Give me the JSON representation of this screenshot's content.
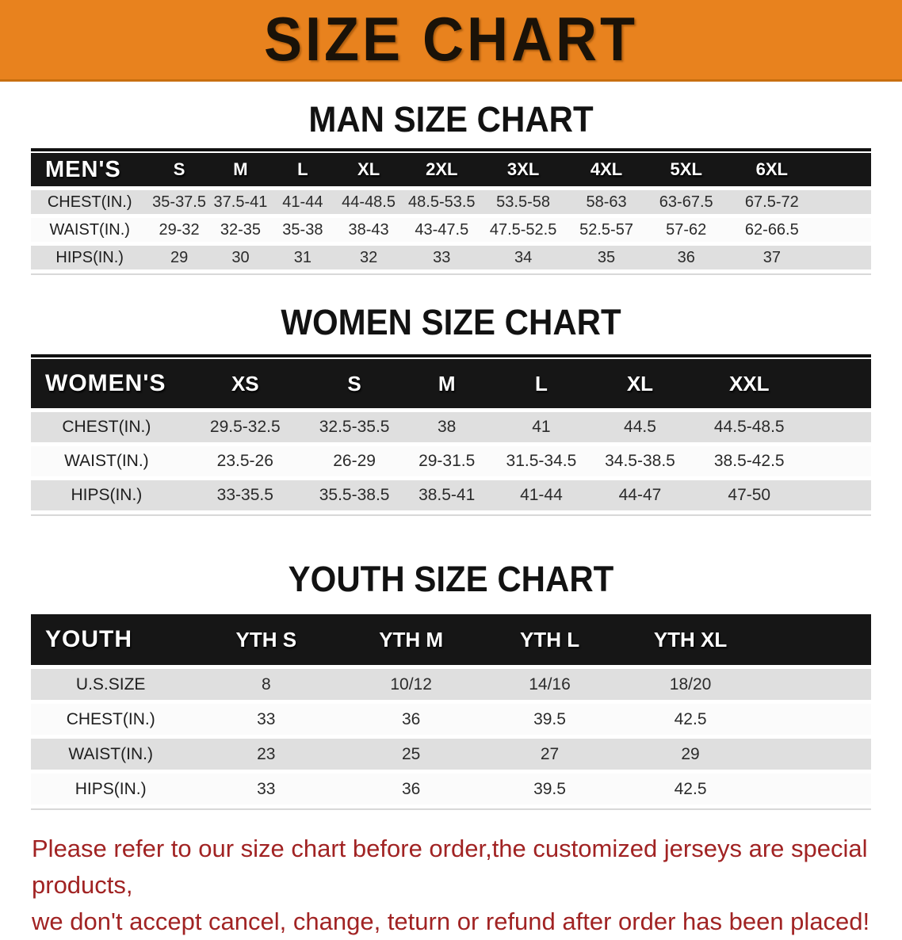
{
  "banner": {
    "title": "SIZE CHART",
    "bg_color": "#E8821E"
  },
  "sections": [
    {
      "title": "MAN SIZE CHART",
      "header_label": "MEN'S",
      "columns": [
        "S",
        "M",
        "L",
        "XL",
        "2XL",
        "3XL",
        "4XL",
        "5XL",
        "6XL"
      ],
      "rows": [
        {
          "label": "CHEST(IN.)",
          "values": [
            "35-37.5",
            "37.5-41",
            "41-44",
            "44-48.5",
            "48.5-53.5",
            "53.5-58",
            "58-63",
            "63-67.5",
            "67.5-72"
          ]
        },
        {
          "label": "WAIST(IN.)",
          "values": [
            "29-32",
            "32-35",
            "35-38",
            "38-43",
            "43-47.5",
            "47.5-52.5",
            "52.5-57",
            "57-62",
            "62-66.5"
          ]
        },
        {
          "label": "HIPS(IN.)",
          "values": [
            "29",
            "30",
            "31",
            "32",
            "33",
            "34",
            "35",
            "36",
            "37"
          ]
        }
      ]
    },
    {
      "title": "WOMEN SIZE CHART",
      "header_label": "WOMEN'S",
      "columns": [
        "XS",
        "S",
        "M",
        "L",
        "XL",
        "XXL"
      ],
      "rows": [
        {
          "label": "CHEST(IN.)",
          "values": [
            "29.5-32.5",
            "32.5-35.5",
            "38",
            "41",
            "44.5",
            "44.5-48.5"
          ]
        },
        {
          "label": "WAIST(IN.)",
          "values": [
            "23.5-26",
            "26-29",
            "29-31.5",
            "31.5-34.5",
            "34.5-38.5",
            "38.5-42.5"
          ]
        },
        {
          "label": "HIPS(IN.)",
          "values": [
            "33-35.5",
            "35.5-38.5",
            "38.5-41",
            "41-44",
            "44-47",
            "47-50"
          ]
        }
      ]
    },
    {
      "title": "YOUTH SIZE CHART",
      "header_label": "YOUTH",
      "columns": [
        "YTH S",
        "YTH M",
        "YTH L",
        "YTH XL"
      ],
      "rows": [
        {
          "label": "U.S.SIZE",
          "values": [
            "8",
            "10/12",
            "14/16",
            "18/20"
          ]
        },
        {
          "label": "CHEST(IN.)",
          "values": [
            "33",
            "36",
            "39.5",
            "42.5"
          ]
        },
        {
          "label": "WAIST(IN.)",
          "values": [
            "23",
            "25",
            "27",
            "29"
          ]
        },
        {
          "label": "HIPS(IN.)",
          "values": [
            "33",
            "36",
            "39.5",
            "42.5"
          ]
        }
      ]
    }
  ],
  "disclaimer": {
    "line1": "Please refer to our size chart before order,the customized jerseys are special products,",
    "line2": "we don't accept cancel, change, teturn or refund after order has been placed!",
    "color": "#A12323"
  }
}
